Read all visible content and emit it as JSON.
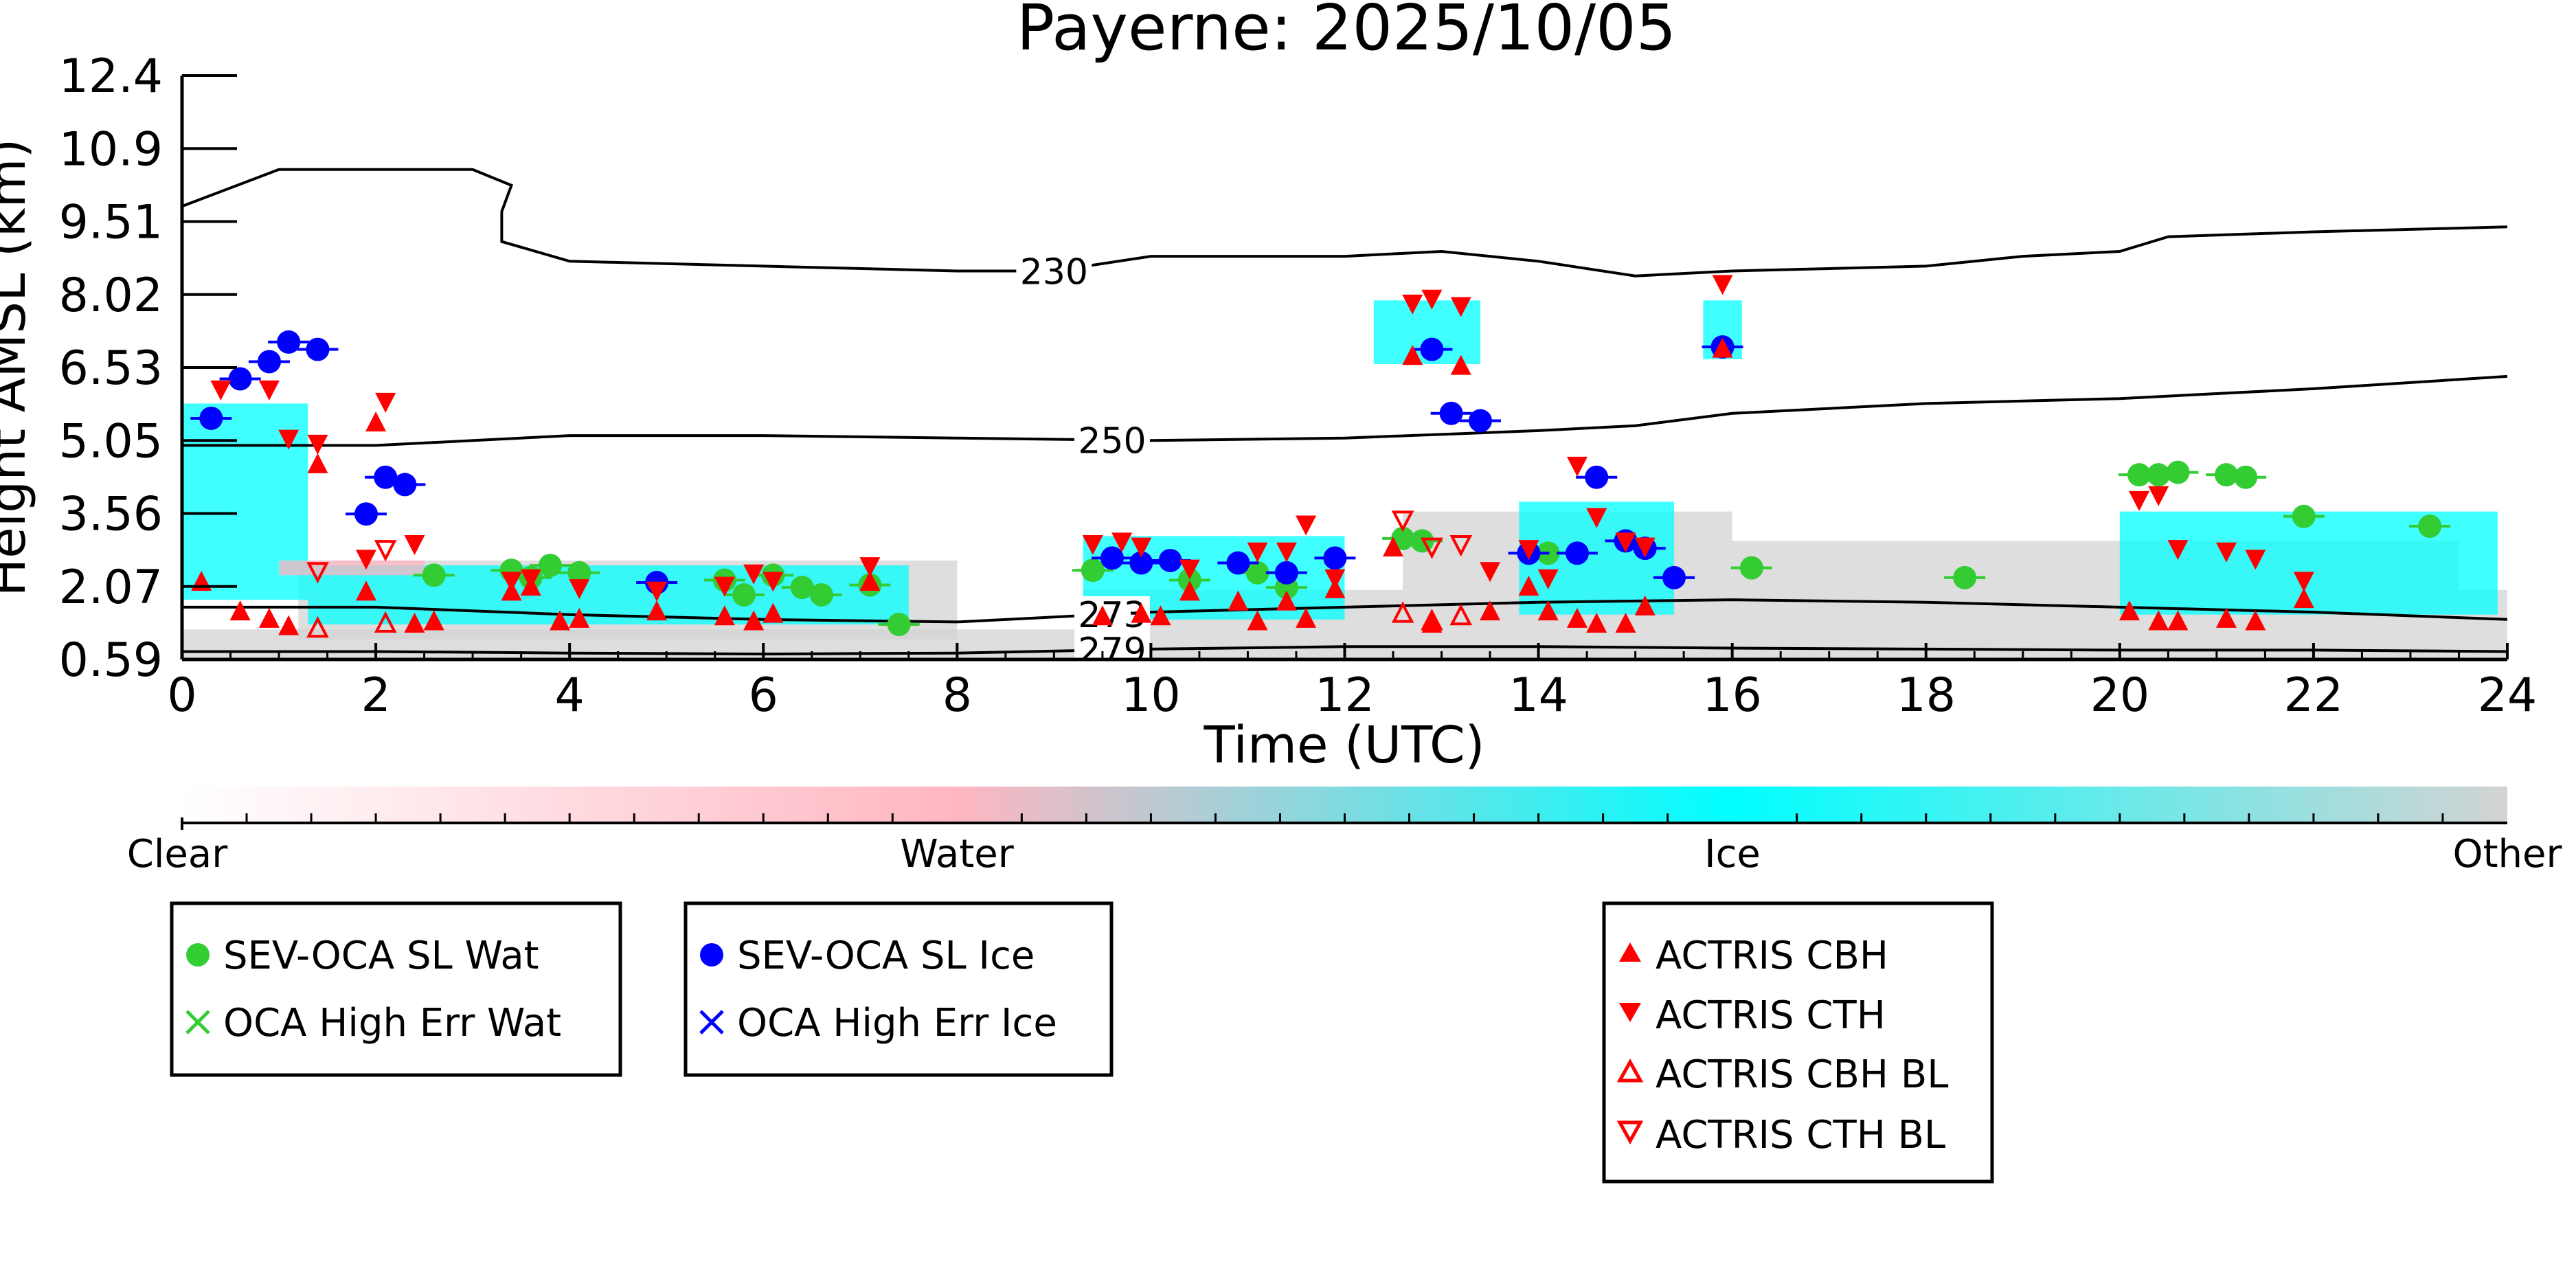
{
  "chart_data": {
    "type": "scatter",
    "title": "Payerne: 2025/10/05",
    "xlabel": "Time (UTC)",
    "ylabel": "Height AMSL (km)",
    "xlim": [
      0,
      24
    ],
    "ylim": [
      0.59,
      12.4
    ],
    "x_ticks": [
      "0",
      "2",
      "4",
      "6",
      "8",
      "10",
      "12",
      "14",
      "16",
      "18",
      "20",
      "22",
      "24"
    ],
    "y_ticks": [
      "0.59",
      "2.07",
      "3.56",
      "5.05",
      "6.53",
      "8.02",
      "9.51",
      "10.9",
      "12.4"
    ],
    "y_tick_values": [
      0.59,
      2.07,
      3.56,
      5.05,
      6.53,
      8.02,
      9.51,
      10.9,
      12.4
    ],
    "colorbar": {
      "labels": [
        "Clear",
        "Water",
        "Ice",
        "Other"
      ],
      "colors": [
        "#ffffff",
        "#ffb6c1",
        "#00ffff",
        "#d3d3d3"
      ]
    },
    "isotherms": [
      {
        "label": "230",
        "label_x": 9.0,
        "points": [
          [
            0,
            9.8
          ],
          [
            1,
            10.5
          ],
          [
            3,
            10.5
          ],
          [
            3.4,
            10.2
          ],
          [
            3.3,
            9.7
          ],
          [
            3.3,
            9.1
          ],
          [
            4,
            8.7
          ],
          [
            6,
            8.6
          ],
          [
            8,
            8.5
          ],
          [
            9,
            8.5
          ],
          [
            10,
            8.8
          ],
          [
            12,
            8.8
          ],
          [
            13,
            8.9
          ],
          [
            14,
            8.7
          ],
          [
            15,
            8.4
          ],
          [
            16,
            8.5
          ],
          [
            18,
            8.6
          ],
          [
            19,
            8.8
          ],
          [
            20,
            8.9
          ],
          [
            20.5,
            9.2
          ],
          [
            22,
            9.3
          ],
          [
            24,
            9.4
          ]
        ]
      },
      {
        "label": "250",
        "label_x": 9.6,
        "points": [
          [
            0,
            4.95
          ],
          [
            2,
            4.95
          ],
          [
            4,
            5.15
          ],
          [
            6,
            5.15
          ],
          [
            8,
            5.1
          ],
          [
            10,
            5.05
          ],
          [
            12,
            5.1
          ],
          [
            14,
            5.25
          ],
          [
            15,
            5.35
          ],
          [
            16,
            5.6
          ],
          [
            18,
            5.8
          ],
          [
            20,
            5.9
          ],
          [
            22,
            6.1
          ],
          [
            24,
            6.35
          ]
        ]
      },
      {
        "label": "273",
        "label_x": 9.6,
        "points": [
          [
            0,
            1.65
          ],
          [
            2,
            1.65
          ],
          [
            4,
            1.5
          ],
          [
            6,
            1.4
          ],
          [
            8,
            1.35
          ],
          [
            10,
            1.55
          ],
          [
            12,
            1.65
          ],
          [
            14,
            1.75
          ],
          [
            16,
            1.8
          ],
          [
            18,
            1.75
          ],
          [
            20,
            1.65
          ],
          [
            22,
            1.55
          ],
          [
            24,
            1.4
          ]
        ]
      },
      {
        "label": "279",
        "label_x": 9.6,
        "points": [
          [
            0,
            0.75
          ],
          [
            2,
            0.75
          ],
          [
            4,
            0.72
          ],
          [
            6,
            0.7
          ],
          [
            8,
            0.72
          ],
          [
            10,
            0.8
          ],
          [
            12,
            0.85
          ],
          [
            14,
            0.85
          ],
          [
            16,
            0.82
          ],
          [
            18,
            0.8
          ],
          [
            20,
            0.78
          ],
          [
            22,
            0.78
          ],
          [
            24,
            0.75
          ]
        ]
      }
    ],
    "series": [
      {
        "name": "SEV-OCA SL Wat",
        "marker": "circle",
        "color": "#33cc33",
        "points": [
          [
            2.6,
            2.3
          ],
          [
            3.4,
            2.4
          ],
          [
            3.6,
            2.25
          ],
          [
            3.8,
            2.5
          ],
          [
            4.1,
            2.35
          ],
          [
            5.6,
            2.2
          ],
          [
            5.8,
            1.9
          ],
          [
            6.1,
            2.3
          ],
          [
            6.4,
            2.05
          ],
          [
            6.6,
            1.9
          ],
          [
            7.1,
            2.1
          ],
          [
            7.4,
            1.3
          ],
          [
            9.4,
            2.4
          ],
          [
            10.4,
            2.2
          ],
          [
            11.1,
            2.35
          ],
          [
            11.4,
            2.05
          ],
          [
            12.6,
            3.05
          ],
          [
            12.8,
            3.0
          ],
          [
            14.1,
            2.75
          ],
          [
            16.2,
            2.45
          ],
          [
            18.4,
            2.25
          ],
          [
            20.2,
            4.35
          ],
          [
            20.4,
            4.35
          ],
          [
            20.6,
            4.4
          ],
          [
            21.1,
            4.35
          ],
          [
            21.3,
            4.3
          ],
          [
            21.9,
            3.5
          ],
          [
            23.2,
            3.3
          ]
        ]
      },
      {
        "name": "OCA High Err Wat",
        "marker": "x",
        "color": "#33cc33",
        "points": []
      },
      {
        "name": "SEV-OCA SL Ice",
        "marker": "circle",
        "color": "#0000ff",
        "points": [
          [
            0.3,
            5.5
          ],
          [
            0.6,
            6.3
          ],
          [
            0.9,
            6.65
          ],
          [
            1.1,
            7.05
          ],
          [
            1.4,
            6.9
          ],
          [
            1.9,
            3.55
          ],
          [
            2.1,
            4.3
          ],
          [
            2.3,
            4.15
          ],
          [
            4.9,
            2.15
          ],
          [
            9.6,
            2.65
          ],
          [
            9.9,
            2.55
          ],
          [
            10.2,
            2.6
          ],
          [
            10.9,
            2.55
          ],
          [
            11.4,
            2.35
          ],
          [
            11.9,
            2.65
          ],
          [
            12.9,
            6.9
          ],
          [
            13.1,
            5.6
          ],
          [
            13.4,
            5.45
          ],
          [
            13.9,
            2.75
          ],
          [
            14.4,
            2.75
          ],
          [
            14.6,
            4.3
          ],
          [
            14.9,
            3.0
          ],
          [
            15.1,
            2.85
          ],
          [
            15.4,
            2.25
          ],
          [
            15.9,
            6.95
          ]
        ]
      },
      {
        "name": "OCA High Err Ice",
        "marker": "x",
        "color": "#0000ff",
        "points": []
      },
      {
        "name": "ACTRIS CBH",
        "marker": "triangle-up",
        "color": "#ff0000",
        "points": [
          [
            0.2,
            2.15
          ],
          [
            0.6,
            1.55
          ],
          [
            0.9,
            1.4
          ],
          [
            1.1,
            1.25
          ],
          [
            1.4,
            4.55
          ],
          [
            2.0,
            5.4
          ],
          [
            1.9,
            1.95
          ],
          [
            2.4,
            1.3
          ],
          [
            2.6,
            1.35
          ],
          [
            3.4,
            1.95
          ],
          [
            3.6,
            2.05
          ],
          [
            3.9,
            1.35
          ],
          [
            4.1,
            1.4
          ],
          [
            4.9,
            1.55
          ],
          [
            5.6,
            1.45
          ],
          [
            5.9,
            1.35
          ],
          [
            6.1,
            1.5
          ],
          [
            7.1,
            2.15
          ],
          [
            9.5,
            1.45
          ],
          [
            9.9,
            1.5
          ],
          [
            10.1,
            1.45
          ],
          [
            10.4,
            1.95
          ],
          [
            10.9,
            1.75
          ],
          [
            11.1,
            1.35
          ],
          [
            11.4,
            1.75
          ],
          [
            11.6,
            1.4
          ],
          [
            11.9,
            2.0
          ],
          [
            12.5,
            2.85
          ],
          [
            12.7,
            6.75
          ],
          [
            12.9,
            1.3
          ],
          [
            13.2,
            6.55
          ],
          [
            13.5,
            1.55
          ],
          [
            13.9,
            2.05
          ],
          [
            14.1,
            1.55
          ],
          [
            14.4,
            1.4
          ],
          [
            14.6,
            1.3
          ],
          [
            14.9,
            1.3
          ],
          [
            15.1,
            1.65
          ],
          [
            15.9,
            6.9
          ],
          [
            20.1,
            1.55
          ],
          [
            20.4,
            1.35
          ],
          [
            20.6,
            1.35
          ],
          [
            21.1,
            1.4
          ],
          [
            21.4,
            1.35
          ],
          [
            21.9,
            1.8
          ]
        ]
      },
      {
        "name": "ACTRIS CTH",
        "marker": "triangle-down",
        "color": "#ff0000",
        "points": [
          [
            0.4,
            6.1
          ],
          [
            0.9,
            6.1
          ],
          [
            1.1,
            5.1
          ],
          [
            1.4,
            5.0
          ],
          [
            2.1,
            5.85
          ],
          [
            1.9,
            2.65
          ],
          [
            2.4,
            2.95
          ],
          [
            3.4,
            2.2
          ],
          [
            3.6,
            2.25
          ],
          [
            4.1,
            2.05
          ],
          [
            4.9,
            2.0
          ],
          [
            5.6,
            2.1
          ],
          [
            5.9,
            2.35
          ],
          [
            6.1,
            2.2
          ],
          [
            7.1,
            2.5
          ],
          [
            9.4,
            2.95
          ],
          [
            9.7,
            3.0
          ],
          [
            9.9,
            2.9
          ],
          [
            10.4,
            2.45
          ],
          [
            11.1,
            2.8
          ],
          [
            11.4,
            2.8
          ],
          [
            11.6,
            3.35
          ],
          [
            11.9,
            2.25
          ],
          [
            12.7,
            7.85
          ],
          [
            12.9,
            7.95
          ],
          [
            13.2,
            7.8
          ],
          [
            13.5,
            2.4
          ],
          [
            13.9,
            2.85
          ],
          [
            14.1,
            2.25
          ],
          [
            14.4,
            4.55
          ],
          [
            14.6,
            3.5
          ],
          [
            14.9,
            3.0
          ],
          [
            15.1,
            2.9
          ],
          [
            15.9,
            8.25
          ],
          [
            20.2,
            3.85
          ],
          [
            20.4,
            3.95
          ],
          [
            20.6,
            2.85
          ],
          [
            21.1,
            2.8
          ],
          [
            21.4,
            2.65
          ],
          [
            21.9,
            2.2
          ]
        ]
      },
      {
        "name": "ACTRIS CBH BL",
        "marker": "triangle-up-open",
        "color": "#ff0000",
        "points": [
          [
            1.4,
            1.2
          ],
          [
            2.1,
            1.3
          ],
          [
            12.6,
            1.5
          ],
          [
            12.9,
            1.35
          ],
          [
            13.2,
            1.45
          ]
        ]
      },
      {
        "name": "ACTRIS CTH BL",
        "marker": "triangle-down-open",
        "color": "#ff0000",
        "points": [
          [
            1.4,
            2.4
          ],
          [
            2.1,
            2.85
          ],
          [
            12.6,
            3.45
          ],
          [
            12.9,
            2.9
          ],
          [
            13.2,
            2.95
          ]
        ]
      }
    ],
    "legend_placement": "below",
    "grid": false
  }
}
